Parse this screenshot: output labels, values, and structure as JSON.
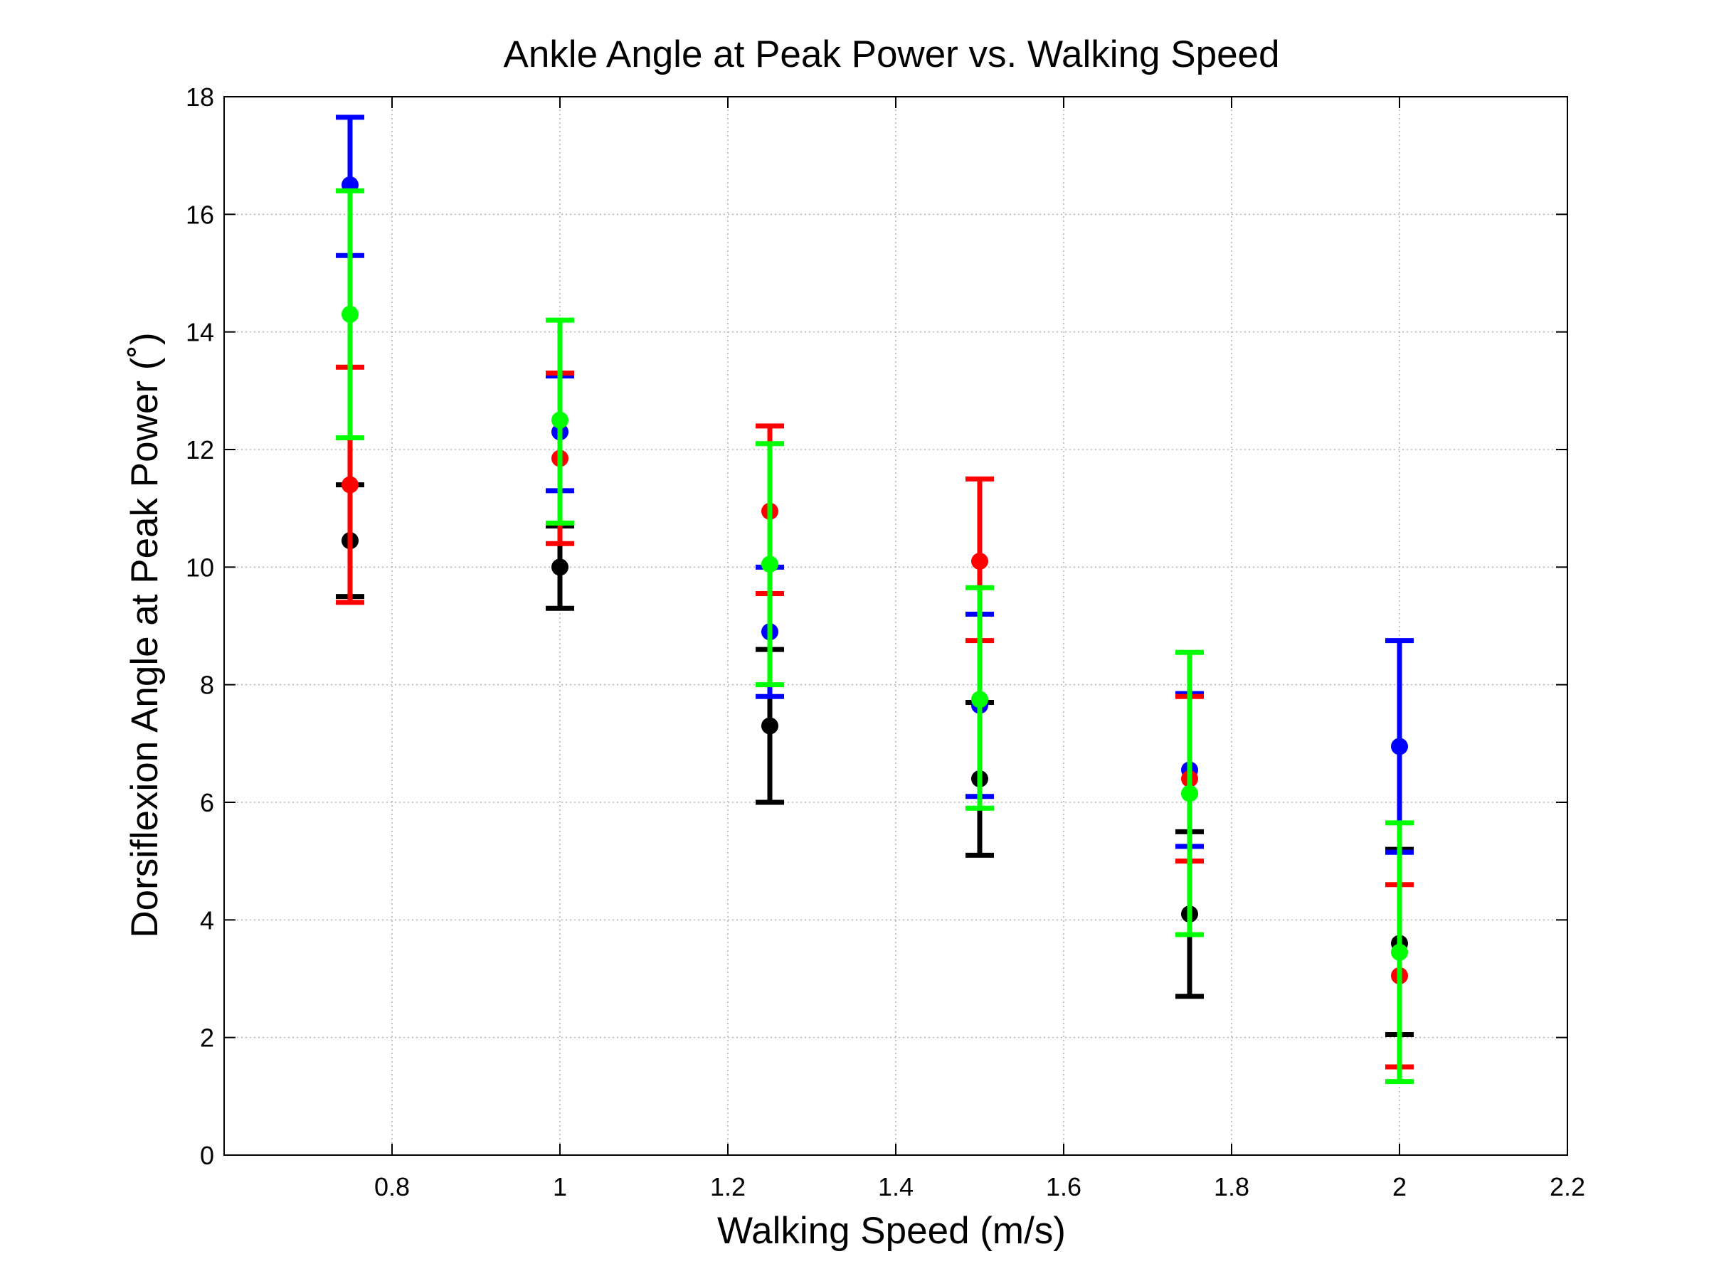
{
  "chart_data": {
    "type": "scatter",
    "title": "Ankle Angle at Peak Power vs. Walking Speed",
    "xlabel": "Walking Speed (m/s)",
    "ylabel": "Dorsiflexion Angle at Peak Power (˚)",
    "xlim": [
      0.6,
      2.2
    ],
    "ylim": [
      0,
      18
    ],
    "xticks": [
      0.8,
      1,
      1.2,
      1.4,
      1.6,
      1.8,
      2,
      2.2
    ],
    "xtick_labels": [
      "0.8",
      "1",
      "1.2",
      "1.4",
      "1.6",
      "1.8",
      "2",
      "2.2"
    ],
    "yticks": [
      0,
      2,
      4,
      6,
      8,
      10,
      12,
      14,
      16,
      18
    ],
    "ytick_labels": [
      "0",
      "2",
      "4",
      "6",
      "8",
      "10",
      "12",
      "14",
      "16",
      "18"
    ],
    "grid": true,
    "legend": "none",
    "error_bars": true,
    "series": [
      {
        "color": "#000000",
        "points": [
          {
            "x": 0.75,
            "y": 10.45,
            "low": 9.5,
            "high": 11.4
          },
          {
            "x": 1.0,
            "y": 10.0,
            "low": 9.3,
            "high": 10.7
          },
          {
            "x": 1.25,
            "y": 7.3,
            "low": 6.0,
            "high": 8.6
          },
          {
            "x": 1.5,
            "y": 6.4,
            "low": 5.1,
            "high": 7.7
          },
          {
            "x": 1.75,
            "y": 4.1,
            "low": 2.7,
            "high": 5.5
          },
          {
            "x": 2.0,
            "y": 3.6,
            "low": 2.05,
            "high": 5.2
          }
        ]
      },
      {
        "color": "#0000ff",
        "points": [
          {
            "x": 0.75,
            "y": 16.5,
            "low": 15.3,
            "high": 17.65
          },
          {
            "x": 1.0,
            "y": 12.3,
            "low": 11.3,
            "high": 13.25
          },
          {
            "x": 1.25,
            "y": 8.9,
            "low": 7.8,
            "high": 10.0
          },
          {
            "x": 1.5,
            "y": 7.65,
            "low": 6.1,
            "high": 9.2
          },
          {
            "x": 1.75,
            "y": 6.55,
            "low": 5.25,
            "high": 7.85
          },
          {
            "x": 2.0,
            "y": 6.95,
            "low": 5.15,
            "high": 8.75
          }
        ]
      },
      {
        "color": "#ff0000",
        "points": [
          {
            "x": 0.75,
            "y": 11.4,
            "low": 9.4,
            "high": 13.4
          },
          {
            "x": 1.0,
            "y": 11.85,
            "low": 10.4,
            "high": 13.3
          },
          {
            "x": 1.25,
            "y": 10.95,
            "low": 9.55,
            "high": 12.4
          },
          {
            "x": 1.5,
            "y": 10.1,
            "low": 8.75,
            "high": 11.5
          },
          {
            "x": 1.75,
            "y": 6.4,
            "low": 5.0,
            "high": 7.8
          },
          {
            "x": 2.0,
            "y": 3.05,
            "low": 1.5,
            "high": 4.6
          }
        ]
      },
      {
        "color": "#00ff00",
        "points": [
          {
            "x": 0.75,
            "y": 14.3,
            "low": 12.2,
            "high": 16.4
          },
          {
            "x": 1.0,
            "y": 12.5,
            "low": 10.75,
            "high": 14.2
          },
          {
            "x": 1.25,
            "y": 10.05,
            "low": 8.0,
            "high": 12.1
          },
          {
            "x": 1.5,
            "y": 7.75,
            "low": 5.9,
            "high": 9.65
          },
          {
            "x": 1.75,
            "y": 6.15,
            "low": 3.75,
            "high": 8.55
          },
          {
            "x": 2.0,
            "y": 3.45,
            "low": 1.25,
            "high": 5.65
          }
        ]
      }
    ]
  }
}
